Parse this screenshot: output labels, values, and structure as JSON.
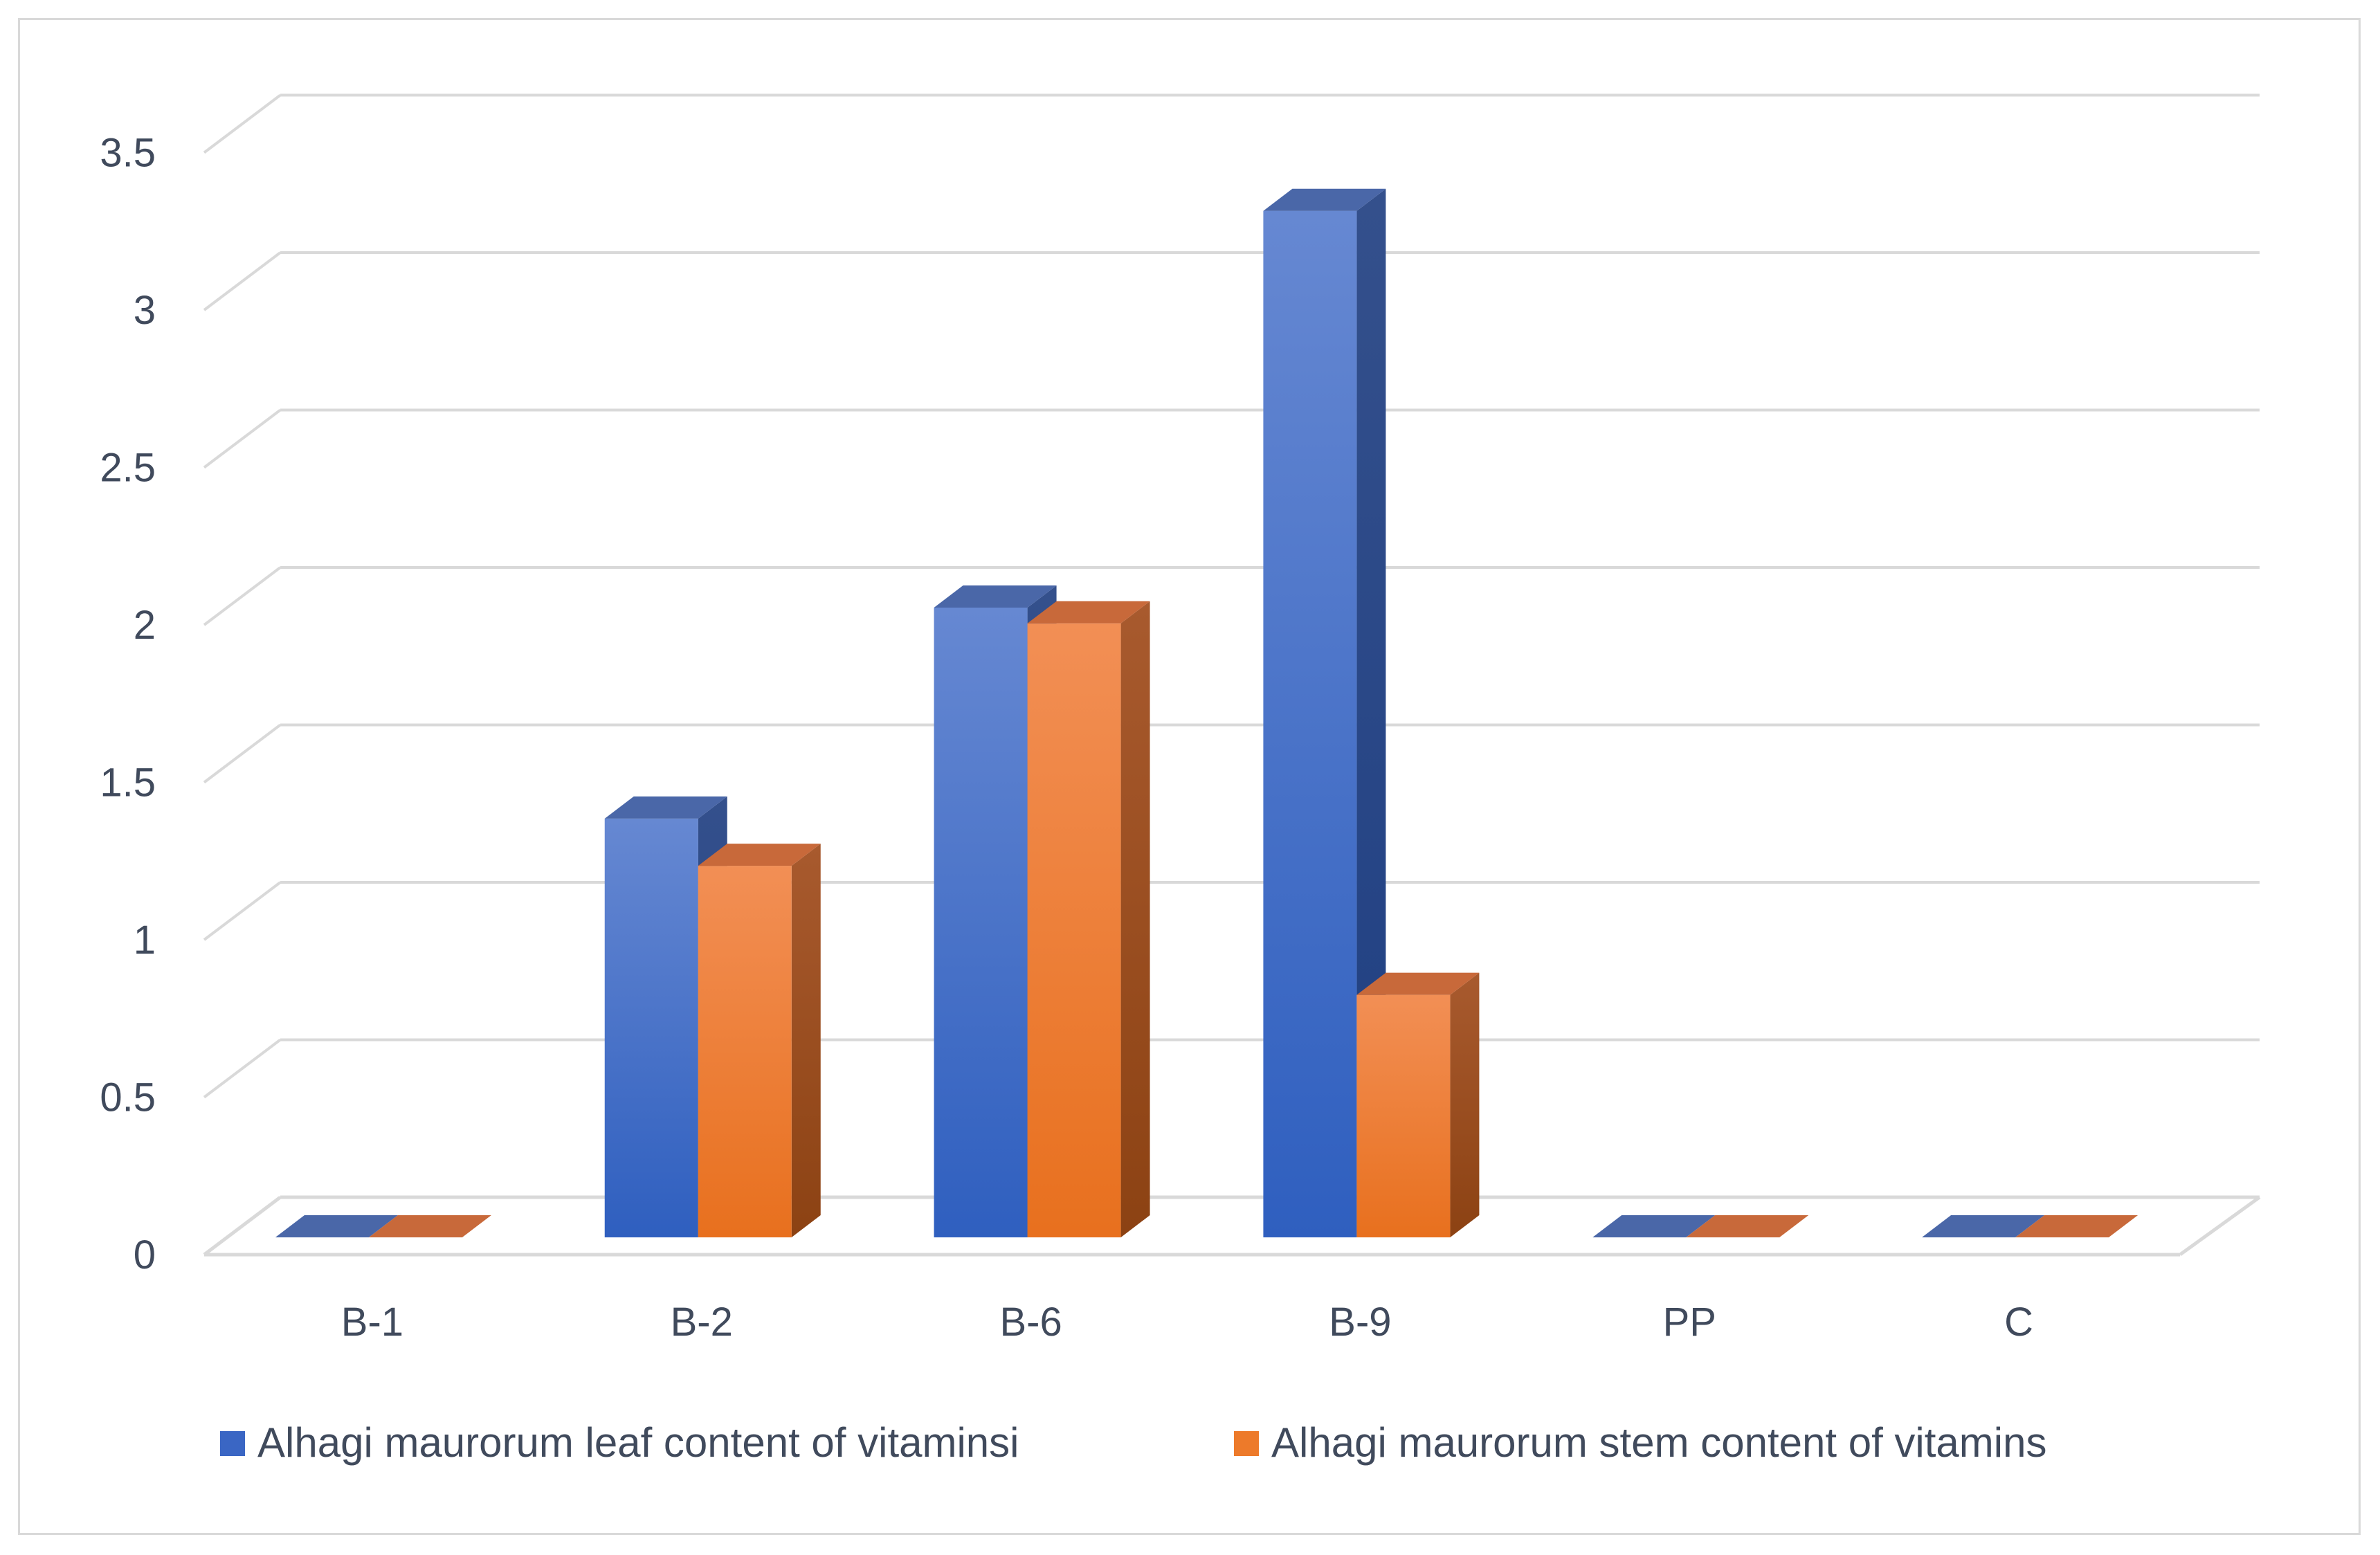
{
  "chart_data": {
    "type": "bar",
    "variant": "3d-clustered-column",
    "title": "",
    "xlabel": "",
    "ylabel": "",
    "categories": [
      "B-1",
      "B-2",
      "B-6",
      "B-9",
      "PP",
      "C"
    ],
    "series": [
      {
        "name": "Alhagi maurorum leaf content of vitaminsi",
        "values": [
          0,
          1.33,
          2.0,
          3.26,
          0,
          0
        ],
        "color": "#4472c4"
      },
      {
        "name": "Alhagi maurorum stem content of vitamins",
        "values": [
          0,
          1.18,
          1.95,
          0.77,
          0,
          0
        ],
        "color": "#ed7d31"
      }
    ],
    "y_ticks": [
      "0",
      "0.5",
      "1",
      "1.5",
      "2",
      "2.5",
      "3",
      "3.5"
    ],
    "ylim": [
      0,
      3.5
    ],
    "grid": true,
    "legend_position": "bottom"
  }
}
